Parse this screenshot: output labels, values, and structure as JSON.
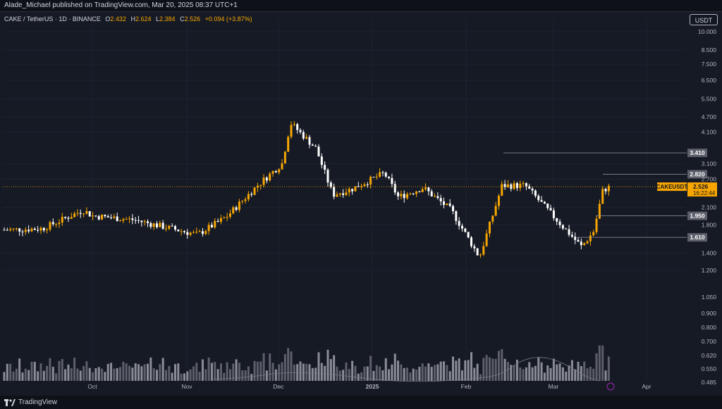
{
  "header": {
    "publisher": "Alade_Michael published on TradingView.com, Mar 20, 2025 08:37 UTC+1"
  },
  "legend": {
    "symbol": "CAKE / TetherUS · 1D · BINANCE",
    "open_label": "O",
    "open": "2.432",
    "high_label": "H",
    "high": "2.624",
    "low_label": "L",
    "low": "2.384",
    "close_label": "C",
    "close": "2.526",
    "change": "+0.094 (+3.87%)"
  },
  "currency_button": "USDT",
  "footer": {
    "brand": "TradingView"
  },
  "colors": {
    "up": "#f7a600",
    "down": "#ffffff",
    "background": "#161a25",
    "grid": "#1f2330",
    "level_box": "#5d606b",
    "volume_up": "#5d606b",
    "volume_down": "#8a8d96"
  },
  "chart_data": {
    "type": "candlestick",
    "symbol": "CAKEUSDT",
    "price_scale": "log",
    "price_ticks": [
      "10.000",
      "8.500",
      "7.500",
      "6.500",
      "5.500",
      "4.700",
      "4.100",
      "3.100",
      "2.700",
      "2.100",
      "1.800",
      "1.400",
      "1.200"
    ],
    "volume_ticks": [
      "1.050",
      "0.900",
      "0.800",
      "0.700",
      "0.620",
      "0.550",
      "0.485"
    ],
    "x_ticks": [
      "Oct",
      "Nov",
      "Dec",
      "2025",
      "Feb",
      "Mar",
      "Apr"
    ],
    "current_price": {
      "symbol": "CAKEUSDT",
      "price": "2.526",
      "countdown": "16:22:44"
    },
    "levels": [
      {
        "label": "3.410",
        "value": 3.41
      },
      {
        "label": "2.820",
        "value": 2.82
      },
      {
        "label": "1.950",
        "value": 1.95
      },
      {
        "label": "1.610",
        "value": 1.61
      }
    ],
    "series": [
      {
        "date": "Sep 1",
        "close": 1.72
      },
      {
        "date": "Sep 15",
        "close": 1.74
      },
      {
        "date": "Sep 22",
        "close": 2.05
      },
      {
        "date": "Oct 1",
        "close": 1.95
      },
      {
        "date": "Oct 15",
        "close": 1.88
      },
      {
        "date": "Oct 31",
        "close": 1.65
      },
      {
        "date": "Nov 10",
        "close": 1.92
      },
      {
        "date": "Nov 22",
        "close": 2.55
      },
      {
        "date": "Dec 2",
        "close": 3.1
      },
      {
        "date": "Dec 6",
        "close": 4.45
      },
      {
        "date": "Dec 14",
        "close": 3.55
      },
      {
        "date": "Dec 20",
        "close": 2.35
      },
      {
        "date": "Jan 1",
        "close": 2.48
      },
      {
        "date": "Jan 8",
        "close": 2.85
      },
      {
        "date": "Jan 14",
        "close": 2.3
      },
      {
        "date": "Jan 22",
        "close": 2.5
      },
      {
        "date": "Jan 30",
        "close": 2.05
      },
      {
        "date": "Feb 3",
        "close": 1.35
      },
      {
        "date": "Feb 10",
        "close": 2.55
      },
      {
        "date": "Feb 17",
        "close": 2.55
      },
      {
        "date": "Feb 28",
        "close": 1.75
      },
      {
        "date": "Mar 8",
        "close": 1.48
      },
      {
        "date": "Mar 14",
        "close": 1.7
      },
      {
        "date": "Mar 16",
        "close": 2.45
      },
      {
        "date": "Mar 20",
        "close": 2.526
      }
    ]
  }
}
